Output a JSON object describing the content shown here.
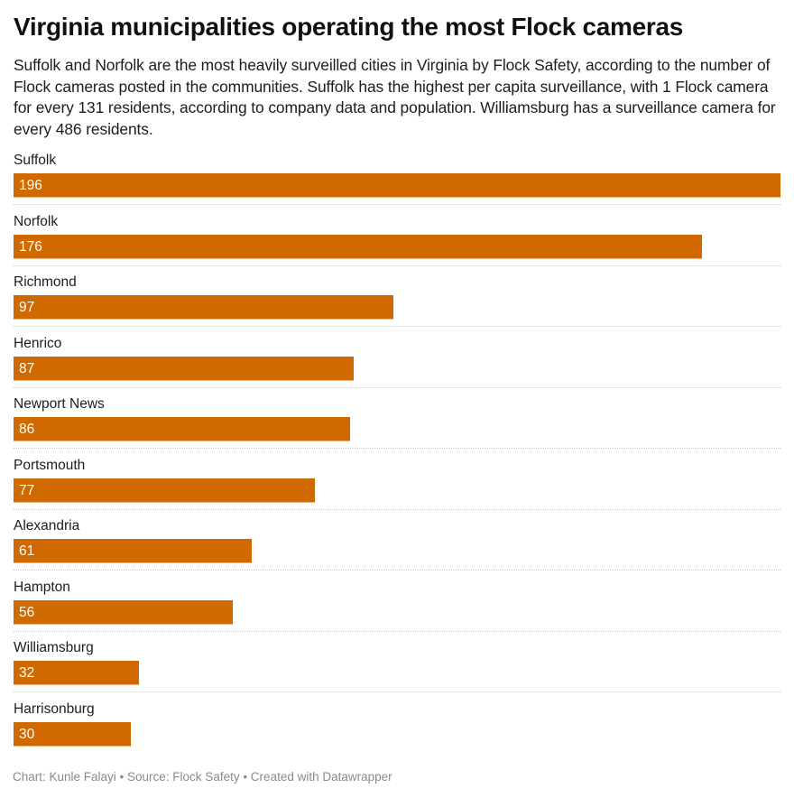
{
  "header": {
    "title": "Virginia municipalities operating the most Flock cameras",
    "description": "Suffolk and Norfolk are the most heavily surveilled cities in Virginia by Flock Safety, according to the number of Flock cameras posted in the communities. Suffolk has the highest per capita surveillance, with 1 Flock camera for every 131 residents, according to company data and population. Williamsburg has a surveillance camera for every 486 residents."
  },
  "footer": {
    "credit": "Chart: Kunle Falayi • Source: Flock Safety • Created with Datawrapper"
  },
  "colors": {
    "bar": "#d06a00",
    "bar_label": "#ffffff",
    "separator": "#c8c8c8"
  },
  "chart_data": {
    "type": "bar",
    "orientation": "horizontal",
    "title": "Virginia municipalities operating the most Flock cameras",
    "xlabel": "",
    "ylabel": "",
    "xlim": [
      0,
      196
    ],
    "grid": false,
    "legend": "none",
    "categories": [
      "Suffolk",
      "Norfolk",
      "Richmond",
      "Henrico",
      "Newport News",
      "Portsmouth",
      "Alexandria",
      "Hampton",
      "Williamsburg",
      "Harrisonburg"
    ],
    "values": [
      196,
      176,
      97,
      87,
      86,
      77,
      61,
      56,
      32,
      30
    ],
    "series": [
      {
        "name": "Flock cameras",
        "values": [
          196,
          176,
          97,
          87,
          86,
          77,
          61,
          56,
          32,
          30
        ]
      }
    ]
  },
  "rows": [
    {
      "label": "Suffolk",
      "value": "196",
      "pct": 100
    },
    {
      "label": "Norfolk",
      "value": "176",
      "pct": 89.8
    },
    {
      "label": "Richmond",
      "value": "97",
      "pct": 49.5
    },
    {
      "label": "Henrico",
      "value": "87",
      "pct": 44.4
    },
    {
      "label": "Newport News",
      "value": "86",
      "pct": 43.9
    },
    {
      "label": "Portsmouth",
      "value": "77",
      "pct": 39.3
    },
    {
      "label": "Alexandria",
      "value": "61",
      "pct": 31.1
    },
    {
      "label": "Hampton",
      "value": "56",
      "pct": 28.6
    },
    {
      "label": "Williamsburg",
      "value": "32",
      "pct": 16.3
    },
    {
      "label": "Harrisonburg",
      "value": "30",
      "pct": 15.3
    }
  ]
}
